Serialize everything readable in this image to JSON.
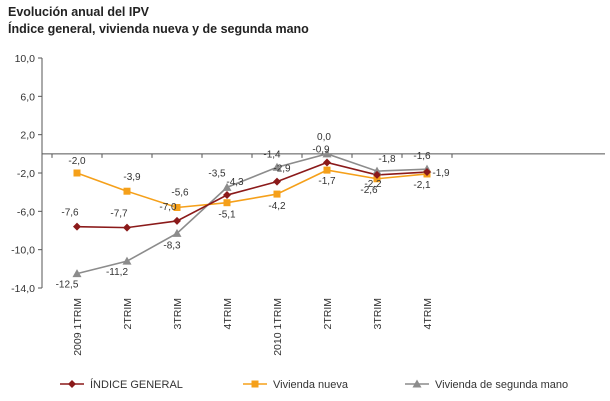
{
  "chart_data": {
    "type": "line",
    "title": "Evolución anual del IPV",
    "subtitle": "Índice general, vivienda nueva y de segunda mano",
    "categories": [
      "2009 1TRIM",
      "2TRIM",
      "3TRIM",
      "4TRIM",
      "2010 1TRIM",
      "2TRIM",
      "3TRIM",
      "4TRIM"
    ],
    "ylim": [
      -14,
      10
    ],
    "yticks": [
      "10,0",
      "6,0",
      "2,0",
      "-2,0",
      "-6,0",
      "-10,0",
      "-14,0"
    ],
    "grid": false,
    "legend_position": "bottom",
    "series": [
      {
        "name": "ÍNDICE GENERAL",
        "color": "#8b1a1a",
        "marker": "diamond",
        "values": [
          -7.6,
          -7.7,
          -7.0,
          -4.3,
          -2.9,
          -0.9,
          -2.2,
          -1.9
        ],
        "labels": [
          "-7,6",
          "-7,7",
          "-7,0",
          "-4,3",
          "-2,9",
          "-0,9",
          "-2,2",
          "-1,9"
        ]
      },
      {
        "name": "Vivienda nueva",
        "color": "#f5a01a",
        "marker": "square",
        "values": [
          -2.0,
          -3.9,
          -5.6,
          -5.1,
          -4.2,
          -1.7,
          -2.6,
          -2.1
        ],
        "labels": [
          "-2,0",
          "-3,9",
          "-5,6",
          "-5,1",
          "-4,2",
          "-1,7",
          "-2,6",
          "-2,1"
        ]
      },
      {
        "name": "Vivienda de segunda mano",
        "color": "#8c8c8c",
        "marker": "triangle",
        "values": [
          -12.5,
          -11.2,
          -8.3,
          -3.5,
          -1.4,
          0.0,
          -1.8,
          -1.6
        ],
        "labels": [
          "-12,5",
          "-11,2",
          "-8,3",
          "-3,5",
          "-1,4",
          "0,0",
          "-1,8",
          "-1,6"
        ]
      }
    ]
  }
}
